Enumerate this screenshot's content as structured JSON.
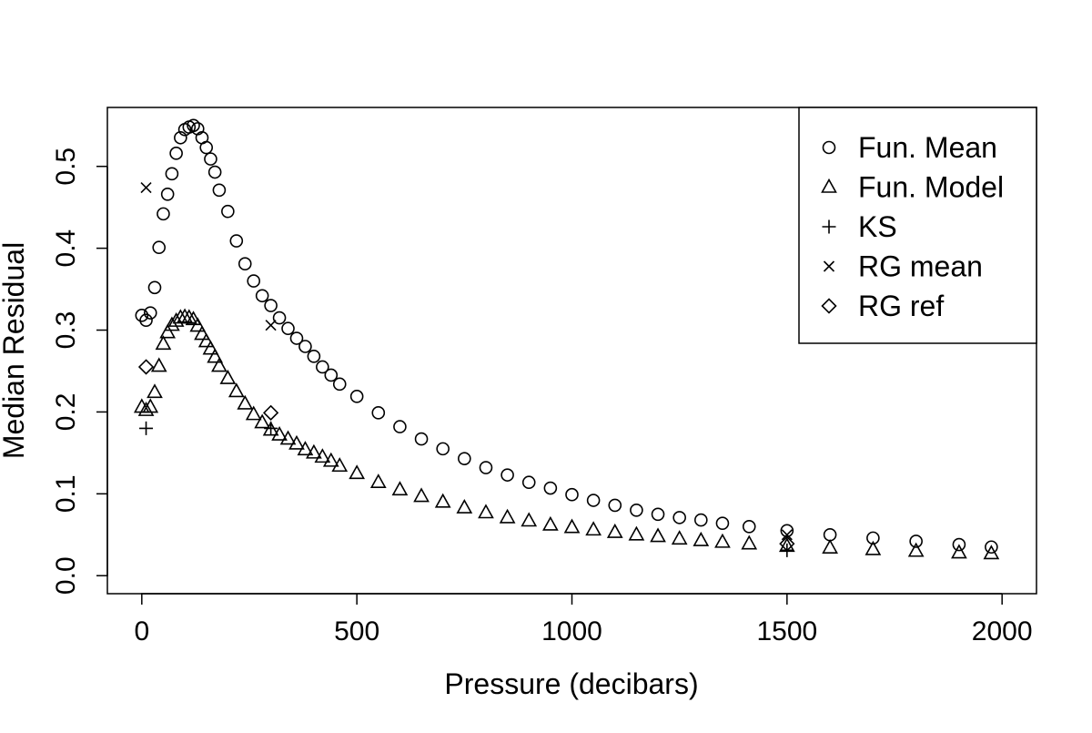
{
  "chart_data": {
    "type": "scatter",
    "title": "",
    "xlabel": "Pressure (decibars)",
    "ylabel": "Median Residual",
    "xlim": [
      -80,
      2080
    ],
    "ylim": [
      -0.022,
      0.572
    ],
    "x_ticks": [
      0,
      500,
      1000,
      1500,
      2000
    ],
    "x_tick_labels": [
      "0",
      "500",
      "1000",
      "1500",
      "2000"
    ],
    "y_ticks": [
      0.0,
      0.1,
      0.2,
      0.3,
      0.4,
      0.5
    ],
    "y_tick_labels": [
      "0.0",
      "0.1",
      "0.2",
      "0.3",
      "0.4",
      "0.5"
    ],
    "grid": false,
    "legend_position": "top-right",
    "series": [
      {
        "name": "Fun. Mean",
        "marker": "circle",
        "points": [
          [
            0,
            0.318
          ],
          [
            10,
            0.312
          ],
          [
            20,
            0.321
          ],
          [
            30,
            0.352
          ],
          [
            40,
            0.401
          ],
          [
            50,
            0.442
          ],
          [
            60,
            0.466
          ],
          [
            70,
            0.491
          ],
          [
            80,
            0.516
          ],
          [
            90,
            0.535
          ],
          [
            100,
            0.545
          ],
          [
            110,
            0.548
          ],
          [
            120,
            0.55
          ],
          [
            130,
            0.546
          ],
          [
            140,
            0.535
          ],
          [
            150,
            0.523
          ],
          [
            160,
            0.509
          ],
          [
            170,
            0.493
          ],
          [
            180,
            0.471
          ],
          [
            200,
            0.445
          ],
          [
            220,
            0.409
          ],
          [
            240,
            0.381
          ],
          [
            260,
            0.36
          ],
          [
            280,
            0.342
          ],
          [
            300,
            0.33
          ],
          [
            320,
            0.315
          ],
          [
            340,
            0.302
          ],
          [
            360,
            0.29
          ],
          [
            380,
            0.28
          ],
          [
            400,
            0.268
          ],
          [
            420,
            0.255
          ],
          [
            440,
            0.245
          ],
          [
            460,
            0.234
          ],
          [
            500,
            0.219
          ],
          [
            550,
            0.199
          ],
          [
            600,
            0.182
          ],
          [
            650,
            0.167
          ],
          [
            700,
            0.155
          ],
          [
            750,
            0.143
          ],
          [
            800,
            0.132
          ],
          [
            850,
            0.123
          ],
          [
            900,
            0.114
          ],
          [
            950,
            0.107
          ],
          [
            1000,
            0.099
          ],
          [
            1050,
            0.092
          ],
          [
            1100,
            0.086
          ],
          [
            1150,
            0.08
          ],
          [
            1200,
            0.075
          ],
          [
            1250,
            0.071
          ],
          [
            1300,
            0.068
          ],
          [
            1350,
            0.064
          ],
          [
            1412,
            0.06
          ],
          [
            1500,
            0.055
          ],
          [
            1600,
            0.05
          ],
          [
            1700,
            0.046
          ],
          [
            1800,
            0.042
          ],
          [
            1900,
            0.038
          ],
          [
            1975,
            0.035
          ]
        ]
      },
      {
        "name": "Fun. Model",
        "marker": "triangle",
        "points": [
          [
            0,
            0.206
          ],
          [
            10,
            0.202
          ],
          [
            20,
            0.206
          ],
          [
            30,
            0.224
          ],
          [
            40,
            0.256
          ],
          [
            50,
            0.283
          ],
          [
            60,
            0.297
          ],
          [
            70,
            0.306
          ],
          [
            80,
            0.311
          ],
          [
            90,
            0.315
          ],
          [
            100,
            0.316
          ],
          [
            110,
            0.315
          ],
          [
            120,
            0.313
          ],
          [
            130,
            0.305
          ],
          [
            140,
            0.295
          ],
          [
            150,
            0.286
          ],
          [
            160,
            0.277
          ],
          [
            170,
            0.267
          ],
          [
            180,
            0.256
          ],
          [
            200,
            0.241
          ],
          [
            220,
            0.225
          ],
          [
            240,
            0.21
          ],
          [
            260,
            0.197
          ],
          [
            280,
            0.187
          ],
          [
            300,
            0.178
          ],
          [
            320,
            0.172
          ],
          [
            340,
            0.167
          ],
          [
            360,
            0.161
          ],
          [
            380,
            0.154
          ],
          [
            400,
            0.15
          ],
          [
            420,
            0.145
          ],
          [
            440,
            0.14
          ],
          [
            460,
            0.134
          ],
          [
            500,
            0.125
          ],
          [
            550,
            0.114
          ],
          [
            600,
            0.105
          ],
          [
            650,
            0.097
          ],
          [
            700,
            0.09
          ],
          [
            750,
            0.083
          ],
          [
            800,
            0.077
          ],
          [
            850,
            0.071
          ],
          [
            900,
            0.067
          ],
          [
            950,
            0.062
          ],
          [
            1000,
            0.059
          ],
          [
            1050,
            0.056
          ],
          [
            1100,
            0.053
          ],
          [
            1150,
            0.05
          ],
          [
            1200,
            0.048
          ],
          [
            1250,
            0.045
          ],
          [
            1300,
            0.043
          ],
          [
            1350,
            0.041
          ],
          [
            1412,
            0.039
          ],
          [
            1500,
            0.036
          ],
          [
            1600,
            0.034
          ],
          [
            1700,
            0.032
          ],
          [
            1800,
            0.03
          ],
          [
            1900,
            0.028
          ],
          [
            1975,
            0.027
          ]
        ]
      },
      {
        "name": "KS",
        "marker": "plus",
        "points": [
          [
            10,
            0.18
          ],
          [
            300,
            0.18
          ],
          [
            1500,
            0.031
          ]
        ]
      },
      {
        "name": "RG mean",
        "marker": "cross",
        "points": [
          [
            10,
            0.474
          ],
          [
            300,
            0.306
          ],
          [
            1500,
            0.05
          ]
        ]
      },
      {
        "name": "RG ref",
        "marker": "diamond",
        "points": [
          [
            10,
            0.255
          ],
          [
            300,
            0.199
          ],
          [
            1500,
            0.039
          ]
        ]
      }
    ]
  }
}
